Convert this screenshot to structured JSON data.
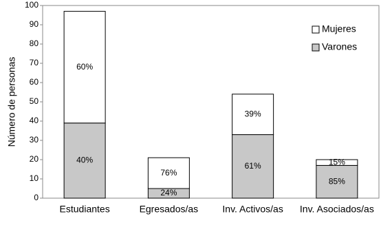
{
  "chart_data": {
    "type": "stacked-bar",
    "y_label": "Número de personas",
    "categories": [
      "Estudiantes",
      "Egresados/as",
      "Inv. Activos/as",
      "Inv. Asociados/as"
    ],
    "series": [
      {
        "name": "Varones",
        "color": "#c8c8c8",
        "values": [
          39,
          5,
          33,
          17
        ],
        "percent_labels": [
          "40%",
          "24%",
          "61%",
          "85%"
        ]
      },
      {
        "name": "Mujeres",
        "color": "#ffffff",
        "values": [
          58,
          16,
          21,
          3
        ],
        "percent_labels": [
          "60%",
          "76%",
          "39%",
          "15%"
        ]
      }
    ],
    "ylim": [
      0,
      100
    ],
    "yticks": [
      0,
      10,
      20,
      30,
      40,
      50,
      60,
      70,
      80,
      90,
      100
    ],
    "legend": "upper-right"
  }
}
